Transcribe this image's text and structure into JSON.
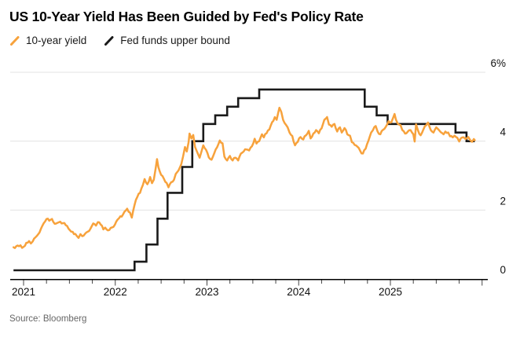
{
  "header": {
    "title": "US 10-Year Yield Has Been Guided by Fed's Policy Rate"
  },
  "legend": {
    "items": [
      {
        "label": "10-year yield",
        "color": "#F7A23C"
      },
      {
        "label": "Fed funds upper bound",
        "color": "#1A1A1A"
      }
    ]
  },
  "source": {
    "text": "Source: Bloomberg"
  },
  "colors": {
    "ten_year": "#F7A23C",
    "fed_funds": "#1A1A1A",
    "gridline": "#E3E3E3",
    "axis": "#000000",
    "tick": "#444444",
    "label": "#111111"
  },
  "chart_data": {
    "type": "line",
    "title": "US 10-Year Yield Has Been Guided by Fed's Policy Rate",
    "xlabel": "",
    "ylabel": "",
    "y_unit": "%",
    "ylim": [
      0,
      6.3
    ],
    "x_domain_years": [
      2020.89,
      2026.06
    ],
    "grid": "horizontal",
    "legend_position": "top-left",
    "y_ticks": [
      {
        "value": 0,
        "label": "0"
      },
      {
        "value": 2,
        "label": "2"
      },
      {
        "value": 4,
        "label": "4"
      },
      {
        "value": 6,
        "label": "6%"
      }
    ],
    "x_ticks_years": [
      {
        "value": 2021,
        "label": "2021"
      },
      {
        "value": 2022,
        "label": "2022"
      },
      {
        "value": 2023,
        "label": "2023"
      },
      {
        "value": 2024,
        "label": "2024"
      },
      {
        "value": 2025,
        "label": "2025"
      }
    ],
    "x_minor_tick_interval_years": 0.25,
    "series": [
      {
        "name": "10-year yield",
        "style": "jagged-line",
        "color": "#F7A23C",
        "points": [
          [
            2020.89,
            0.92
          ],
          [
            2020.95,
            0.95
          ],
          [
            2021.0,
            0.93
          ],
          [
            2021.03,
            1.05
          ],
          [
            2021.06,
            1.1
          ],
          [
            2021.08,
            1.03
          ],
          [
            2021.1,
            1.09
          ],
          [
            2021.13,
            1.21
          ],
          [
            2021.16,
            1.3
          ],
          [
            2021.19,
            1.46
          ],
          [
            2021.22,
            1.62
          ],
          [
            2021.25,
            1.74
          ],
          [
            2021.28,
            1.69
          ],
          [
            2021.31,
            1.74
          ],
          [
            2021.34,
            1.6
          ],
          [
            2021.37,
            1.63
          ],
          [
            2021.4,
            1.66
          ],
          [
            2021.43,
            1.62
          ],
          [
            2021.46,
            1.56
          ],
          [
            2021.49,
            1.46
          ],
          [
            2021.52,
            1.37
          ],
          [
            2021.55,
            1.3
          ],
          [
            2021.58,
            1.25
          ],
          [
            2021.6,
            1.19
          ],
          [
            2021.62,
            1.3
          ],
          [
            2021.64,
            1.24
          ],
          [
            2021.67,
            1.31
          ],
          [
            2021.7,
            1.37
          ],
          [
            2021.73,
            1.46
          ],
          [
            2021.76,
            1.61
          ],
          [
            2021.79,
            1.55
          ],
          [
            2021.81,
            1.65
          ],
          [
            2021.84,
            1.58
          ],
          [
            2021.87,
            1.44
          ],
          [
            2021.89,
            1.49
          ],
          [
            2021.92,
            1.41
          ],
          [
            2021.95,
            1.48
          ],
          [
            2021.98,
            1.51
          ],
          [
            2022.01,
            1.66
          ],
          [
            2022.04,
            1.76
          ],
          [
            2022.07,
            1.81
          ],
          [
            2022.1,
            1.95
          ],
          [
            2022.13,
            2.04
          ],
          [
            2022.16,
            1.93
          ],
          [
            2022.18,
            1.78
          ],
          [
            2022.21,
            2.15
          ],
          [
            2022.24,
            2.38
          ],
          [
            2022.27,
            2.5
          ],
          [
            2022.3,
            2.72
          ],
          [
            2022.32,
            2.9
          ],
          [
            2022.35,
            2.75
          ],
          [
            2022.38,
            2.96
          ],
          [
            2022.4,
            2.78
          ],
          [
            2022.42,
            2.88
          ],
          [
            2022.44,
            3.2
          ],
          [
            2022.455,
            3.48
          ],
          [
            2022.47,
            3.25
          ],
          [
            2022.5,
            3.02
          ],
          [
            2022.53,
            2.91
          ],
          [
            2022.56,
            2.79
          ],
          [
            2022.58,
            2.66
          ],
          [
            2022.61,
            2.81
          ],
          [
            2022.64,
            2.88
          ],
          [
            2022.66,
            3.05
          ],
          [
            2022.69,
            3.15
          ],
          [
            2022.72,
            3.33
          ],
          [
            2022.74,
            3.56
          ],
          [
            2022.76,
            3.83
          ],
          [
            2022.78,
            3.7
          ],
          [
            2022.8,
            3.97
          ],
          [
            2022.81,
            4.22
          ],
          [
            2022.83,
            4.08
          ],
          [
            2022.85,
            4.18
          ],
          [
            2022.87,
            3.83
          ],
          [
            2022.89,
            3.7
          ],
          [
            2022.92,
            3.52
          ],
          [
            2022.94,
            3.7
          ],
          [
            2022.96,
            3.88
          ],
          [
            2022.99,
            3.75
          ],
          [
            2023.02,
            3.53
          ],
          [
            2023.05,
            3.46
          ],
          [
            2023.08,
            3.65
          ],
          [
            2023.11,
            3.82
          ],
          [
            2023.14,
            4.02
          ],
          [
            2023.17,
            3.94
          ],
          [
            2023.19,
            3.55
          ],
          [
            2023.22,
            3.44
          ],
          [
            2023.25,
            3.57
          ],
          [
            2023.28,
            3.44
          ],
          [
            2023.31,
            3.52
          ],
          [
            2023.34,
            3.44
          ],
          [
            2023.37,
            3.64
          ],
          [
            2023.4,
            3.7
          ],
          [
            2023.43,
            3.76
          ],
          [
            2023.46,
            3.73
          ],
          [
            2023.49,
            3.85
          ],
          [
            2023.52,
            4.07
          ],
          [
            2023.54,
            3.93
          ],
          [
            2023.57,
            4.0
          ],
          [
            2023.6,
            4.2
          ],
          [
            2023.62,
            4.11
          ],
          [
            2023.65,
            4.23
          ],
          [
            2023.68,
            4.34
          ],
          [
            2023.71,
            4.55
          ],
          [
            2023.74,
            4.7
          ],
          [
            2023.76,
            4.62
          ],
          [
            2023.79,
            4.97
          ],
          [
            2023.81,
            4.85
          ],
          [
            2023.83,
            4.62
          ],
          [
            2023.86,
            4.48
          ],
          [
            2023.88,
            4.4
          ],
          [
            2023.9,
            4.25
          ],
          [
            2023.93,
            4.15
          ],
          [
            2023.96,
            3.88
          ],
          [
            2023.99,
            3.98
          ],
          [
            2024.02,
            4.12
          ],
          [
            2024.05,
            4.05
          ],
          [
            2024.08,
            4.17
          ],
          [
            2024.11,
            4.3
          ],
          [
            2024.13,
            4.08
          ],
          [
            2024.16,
            4.22
          ],
          [
            2024.19,
            4.32
          ],
          [
            2024.22,
            4.23
          ],
          [
            2024.25,
            4.37
          ],
          [
            2024.28,
            4.62
          ],
          [
            2024.31,
            4.7
          ],
          [
            2024.33,
            4.48
          ],
          [
            2024.36,
            4.42
          ],
          [
            2024.39,
            4.5
          ],
          [
            2024.42,
            4.28
          ],
          [
            2024.45,
            4.4
          ],
          [
            2024.47,
            4.25
          ],
          [
            2024.5,
            4.38
          ],
          [
            2024.53,
            4.2
          ],
          [
            2024.56,
            4.16
          ],
          [
            2024.58,
            3.97
          ],
          [
            2024.61,
            3.89
          ],
          [
            2024.64,
            3.84
          ],
          [
            2024.67,
            3.72
          ],
          [
            2024.7,
            3.64
          ],
          [
            2024.73,
            3.78
          ],
          [
            2024.76,
            4.01
          ],
          [
            2024.79,
            4.25
          ],
          [
            2024.81,
            4.32
          ],
          [
            2024.84,
            4.44
          ],
          [
            2024.86,
            4.28
          ],
          [
            2024.89,
            4.2
          ],
          [
            2024.92,
            4.33
          ],
          [
            2024.95,
            4.42
          ],
          [
            2024.98,
            4.58
          ],
          [
            2025.01,
            4.55
          ],
          [
            2025.03,
            4.68
          ],
          [
            2025.045,
            4.79
          ],
          [
            2025.06,
            4.63
          ],
          [
            2025.08,
            4.51
          ],
          [
            2025.11,
            4.47
          ],
          [
            2025.13,
            4.32
          ],
          [
            2025.16,
            4.22
          ],
          [
            2025.19,
            4.28
          ],
          [
            2025.22,
            4.32
          ],
          [
            2025.25,
            4.2
          ],
          [
            2025.265,
            3.99
          ],
          [
            2025.28,
            4.49
          ],
          [
            2025.3,
            4.32
          ],
          [
            2025.33,
            4.17
          ],
          [
            2025.36,
            4.34
          ],
          [
            2025.39,
            4.46
          ],
          [
            2025.41,
            4.54
          ],
          [
            2025.44,
            4.32
          ],
          [
            2025.47,
            4.25
          ],
          [
            2025.5,
            4.4
          ],
          [
            2025.52,
            4.35
          ],
          [
            2025.55,
            4.26
          ],
          [
            2025.58,
            4.2
          ],
          [
            2025.6,
            4.28
          ],
          [
            2025.63,
            4.25
          ],
          [
            2025.65,
            4.14
          ],
          [
            2025.68,
            4.11
          ],
          [
            2025.7,
            4.16
          ],
          [
            2025.73,
            4.1
          ],
          [
            2025.75,
            3.99
          ],
          [
            2025.77,
            4.09
          ],
          [
            2025.8,
            4.11
          ],
          [
            2025.82,
            4.06
          ],
          [
            2025.85,
            4.12
          ],
          [
            2025.87,
            4.03
          ],
          [
            2025.89,
            3.98
          ],
          [
            2025.91,
            4.06
          ],
          [
            2025.92,
            4.03
          ]
        ]
      },
      {
        "name": "Fed funds upper bound",
        "style": "step-after",
        "color": "#1A1A1A",
        "points": [
          [
            2020.89,
            0.25
          ],
          [
            2022.21,
            0.5
          ],
          [
            2022.34,
            1.0
          ],
          [
            2022.46,
            1.75
          ],
          [
            2022.57,
            2.5
          ],
          [
            2022.73,
            3.25
          ],
          [
            2022.84,
            4.0
          ],
          [
            2022.96,
            4.5
          ],
          [
            2023.09,
            4.75
          ],
          [
            2023.22,
            5.0
          ],
          [
            2023.34,
            5.25
          ],
          [
            2023.57,
            5.5
          ],
          [
            2024.72,
            5.0
          ],
          [
            2024.85,
            4.75
          ],
          [
            2024.97,
            4.5
          ],
          [
            2025.71,
            4.25
          ],
          [
            2025.83,
            4.0
          ],
          [
            2025.92,
            4.0
          ]
        ]
      }
    ]
  }
}
